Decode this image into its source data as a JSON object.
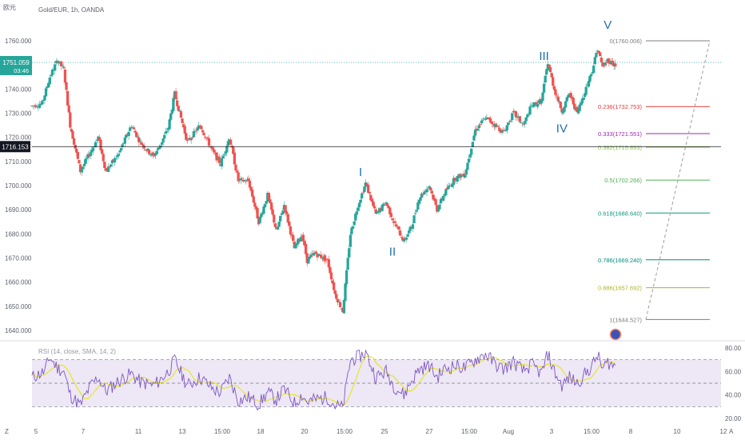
{
  "header": {
    "currency": "欧元",
    "symbol_info": "Gold/EUR, 1h, OANDA"
  },
  "price_axis": {
    "ticks": [
      "1760.000",
      "1750.000",
      "1740.000",
      "1730.000",
      "1720.000",
      "1710.000",
      "1700.000",
      "1690.000",
      "1680.000",
      "1670.000",
      "1660.000",
      "1650.000",
      "1640.000"
    ],
    "current_price": "1751.059",
    "countdown": "03:46",
    "crosshair_price": "1716.153"
  },
  "rsi_axis": {
    "ticks": [
      "80.00",
      "60.00",
      "40.00",
      "20.00"
    ]
  },
  "time_axis": {
    "ticks": [
      "5",
      "7",
      "11",
      "13",
      "15:00",
      "18",
      "20",
      "15:00",
      "25",
      "27",
      "15:00",
      "Aug",
      "3",
      "15:00",
      "8",
      "10",
      "12"
    ]
  },
  "bottom_bar": {
    "left_button": "Z",
    "right_button": "A"
  },
  "chart_data": [
    {
      "type": "candlestick",
      "title": "Gold/EUR, 1h, OANDA",
      "ylim": [
        1637,
        1772
      ],
      "price_path": [
        [
          0,
          1733
        ],
        [
          8,
          1734
        ],
        [
          14,
          1745
        ],
        [
          20,
          1752
        ],
        [
          25,
          1748
        ],
        [
          30,
          1725
        ],
        [
          38,
          1706
        ],
        [
          46,
          1714
        ],
        [
          52,
          1720
        ],
        [
          58,
          1706
        ],
        [
          68,
          1713
        ],
        [
          78,
          1725
        ],
        [
          85,
          1718
        ],
        [
          95,
          1712
        ],
        [
          100,
          1716
        ],
        [
          107,
          1724
        ],
        [
          112,
          1738
        ],
        [
          122,
          1718
        ],
        [
          132,
          1725
        ],
        [
          142,
          1714
        ],
        [
          148,
          1709
        ],
        [
          155,
          1720
        ],
        [
          162,
          1702
        ],
        [
          170,
          1702
        ],
        [
          178,
          1685
        ],
        [
          185,
          1696
        ],
        [
          192,
          1681
        ],
        [
          198,
          1692
        ],
        [
          206,
          1674
        ],
        [
          212,
          1680
        ],
        [
          216,
          1669
        ],
        [
          222,
          1672
        ],
        [
          232,
          1669
        ],
        [
          238,
          1655
        ],
        [
          244,
          1648
        ],
        [
          250,
          1680
        ],
        [
          256,
          1692
        ],
        [
          262,
          1701
        ],
        [
          270,
          1688
        ],
        [
          278,
          1693
        ],
        [
          284,
          1685
        ],
        [
          292,
          1677
        ],
        [
          298,
          1683
        ],
        [
          304,
          1695
        ],
        [
          312,
          1700
        ],
        [
          318,
          1690
        ],
        [
          324,
          1697
        ],
        [
          332,
          1703
        ],
        [
          340,
          1705
        ],
        [
          348,
          1723
        ],
        [
          356,
          1728
        ],
        [
          364,
          1725
        ],
        [
          370,
          1722
        ],
        [
          378,
          1730
        ],
        [
          386,
          1725
        ],
        [
          392,
          1733
        ],
        [
          400,
          1735
        ],
        [
          405,
          1751
        ],
        [
          410,
          1740
        ],
        [
          416,
          1731
        ],
        [
          422,
          1738
        ],
        [
          428,
          1730
        ],
        [
          436,
          1742
        ],
        [
          440,
          1748
        ],
        [
          444,
          1757
        ],
        [
          448,
          1749
        ],
        [
          452,
          1752
        ],
        [
          458,
          1750
        ]
      ],
      "wave_labels": [
        {
          "label": "I",
          "x": 258,
          "price": 1704
        },
        {
          "label": "II",
          "x": 283,
          "price": 1671
        },
        {
          "label": "III",
          "x": 402,
          "price": 1752
        },
        {
          "label": "IV",
          "x": 416,
          "price": 1722
        },
        {
          "label": "V",
          "x": 452,
          "price": 1765
        }
      ],
      "fibonacci": [
        {
          "level": "0",
          "price": 1760.006,
          "label": "0(1760.006)",
          "color": "#7d7d7d"
        },
        {
          "level": "0.236",
          "price": 1732.753,
          "label": "0.236(1732.753)",
          "color": "#e53935"
        },
        {
          "level": "0.333",
          "price": 1721.551,
          "label": "0.333(1721.551)",
          "color": "#9c27b0"
        },
        {
          "level": "0.382",
          "price": 1715.893,
          "label": "0.382(1715.893)",
          "color": "#8bc34a"
        },
        {
          "level": "0.5",
          "price": 1702.266,
          "label": "0.5(1702.266)",
          "color": "#4caf50"
        },
        {
          "level": "0.618",
          "price": 1688.64,
          "label": "0.618(1688.640)",
          "color": "#089981"
        },
        {
          "level": "0.786",
          "price": 1669.24,
          "label": "0.786(1669.240)",
          "color": "#00897b"
        },
        {
          "level": "0.886",
          "price": 1657.692,
          "label": "0.886(1657.692)",
          "color": "#afb42b"
        },
        {
          "level": "1",
          "price": 1644.527,
          "label": "1(1644.527)",
          "color": "#7d7d7d"
        }
      ],
      "last_price": 1751.059,
      "crosshair_price": 1716.153,
      "colors": {
        "up": "#26a69a",
        "down": "#ef5350",
        "last_price_line": "#26a69a"
      }
    },
    {
      "type": "line",
      "title": "RSI (14, close, SMA, 14, 2)",
      "ylim": [
        15,
        85
      ],
      "bands": [
        70,
        50,
        30
      ],
      "rsi_path": [
        [
          0,
          55
        ],
        [
          10,
          60
        ],
        [
          14,
          72
        ],
        [
          20,
          63
        ],
        [
          25,
          60
        ],
        [
          30,
          40
        ],
        [
          38,
          31
        ],
        [
          46,
          48
        ],
        [
          52,
          55
        ],
        [
          58,
          43
        ],
        [
          68,
          52
        ],
        [
          78,
          58
        ],
        [
          85,
          51
        ],
        [
          95,
          48
        ],
        [
          100,
          52
        ],
        [
          107,
          60
        ],
        [
          112,
          70
        ],
        [
          122,
          48
        ],
        [
          132,
          55
        ],
        [
          142,
          45
        ],
        [
          148,
          42
        ],
        [
          155,
          55
        ],
        [
          162,
          35
        ],
        [
          170,
          38
        ],
        [
          178,
          32
        ],
        [
          185,
          42
        ],
        [
          192,
          36
        ],
        [
          198,
          45
        ],
        [
          206,
          33
        ],
        [
          212,
          40
        ],
        [
          216,
          34
        ],
        [
          222,
          36
        ],
        [
          232,
          38
        ],
        [
          238,
          31
        ],
        [
          244,
          29
        ],
        [
          250,
          70
        ],
        [
          256,
          72
        ],
        [
          262,
          76
        ],
        [
          270,
          55
        ],
        [
          278,
          60
        ],
        [
          284,
          48
        ],
        [
          292,
          40
        ],
        [
          298,
          52
        ],
        [
          304,
          62
        ],
        [
          312,
          65
        ],
        [
          318,
          55
        ],
        [
          324,
          62
        ],
        [
          332,
          65
        ],
        [
          340,
          63
        ],
        [
          348,
          70
        ],
        [
          356,
          75
        ],
        [
          364,
          66
        ],
        [
          370,
          62
        ],
        [
          378,
          68
        ],
        [
          386,
          60
        ],
        [
          392,
          66
        ],
        [
          400,
          58
        ],
        [
          405,
          75
        ],
        [
          410,
          60
        ],
        [
          416,
          48
        ],
        [
          422,
          55
        ],
        [
          428,
          50
        ],
        [
          436,
          60
        ],
        [
          440,
          65
        ],
        [
          444,
          74
        ],
        [
          448,
          62
        ],
        [
          452,
          68
        ],
        [
          458,
          64
        ]
      ],
      "colors": {
        "rsi": "#7e57c2",
        "sma": "#e6e600",
        "band_fill": "#ede7f6"
      }
    }
  ]
}
